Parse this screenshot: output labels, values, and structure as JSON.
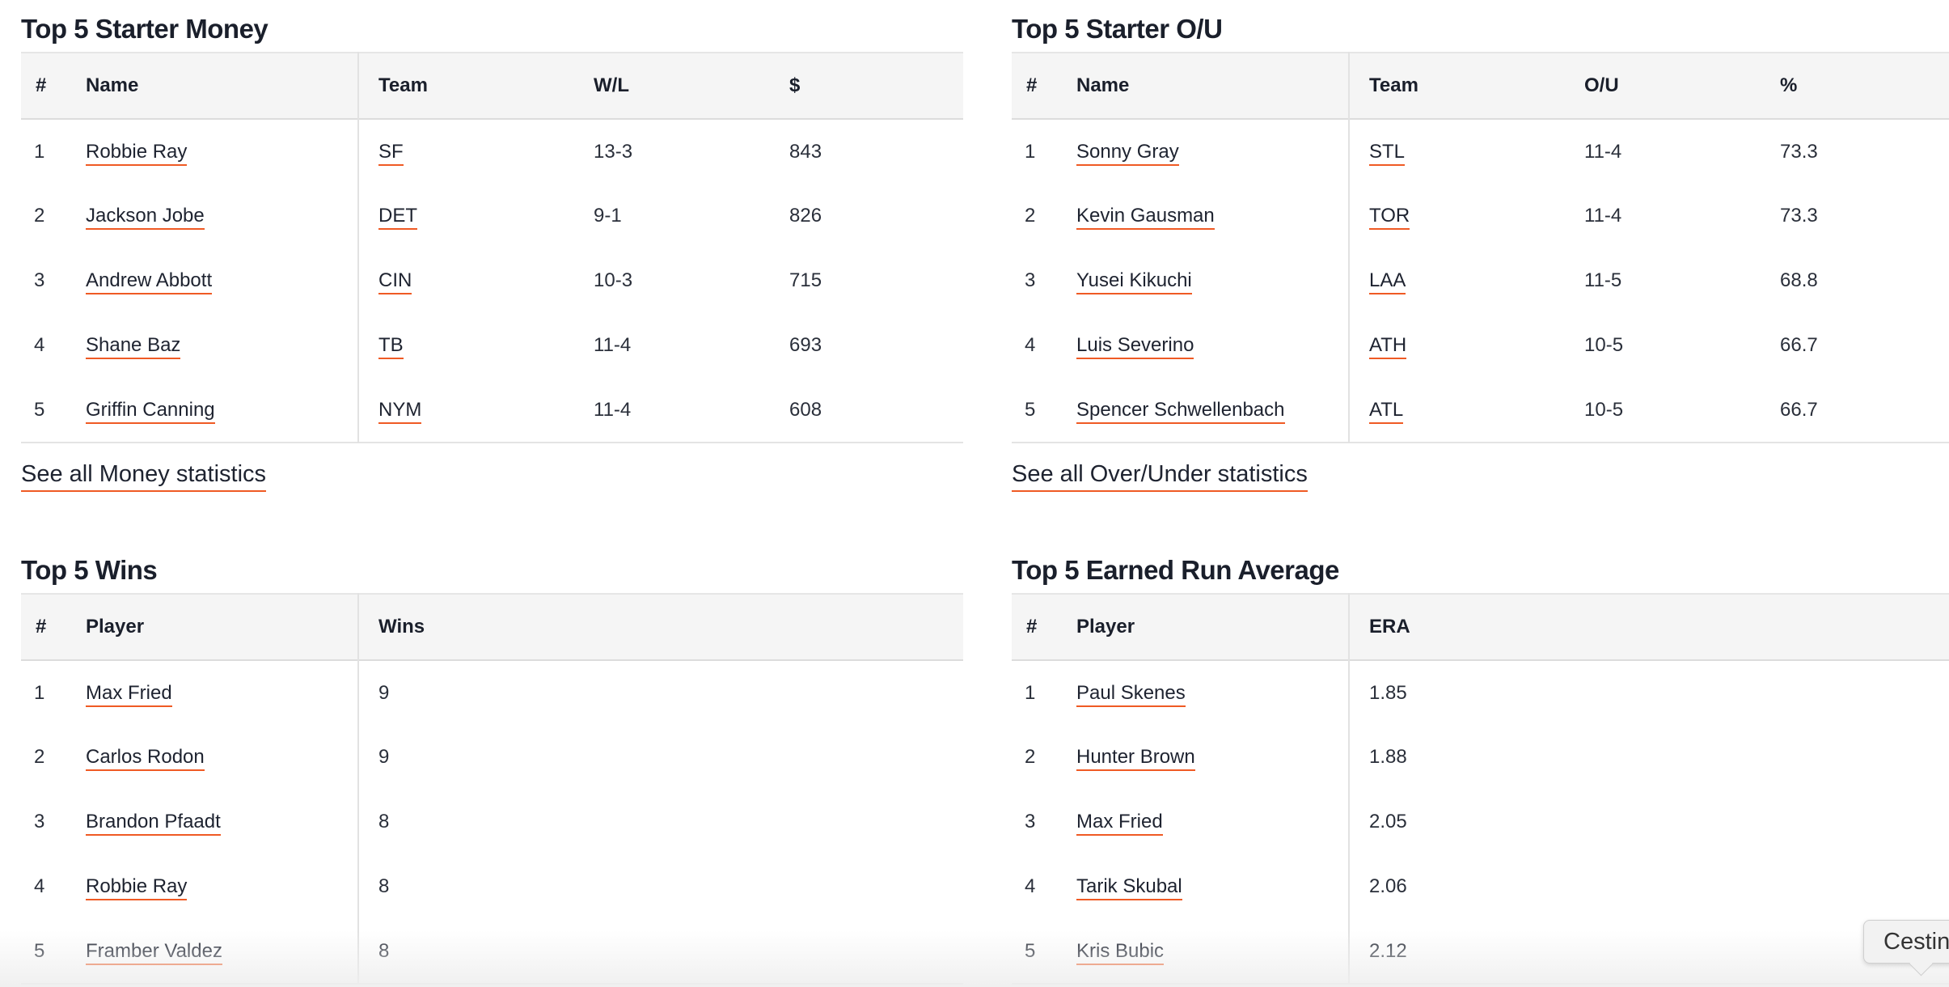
{
  "money": {
    "title": "Top 5 Starter Money",
    "headers": {
      "num": "#",
      "name": "Name",
      "team": "Team",
      "wl": "W/L",
      "money": "$"
    },
    "rows": [
      {
        "num": "1",
        "name": "Robbie Ray",
        "team": "SF",
        "wl": "13-3",
        "money": "843"
      },
      {
        "num": "2",
        "name": "Jackson Jobe",
        "team": "DET",
        "wl": "9-1",
        "money": "826"
      },
      {
        "num": "3",
        "name": "Andrew Abbott",
        "team": "CIN",
        "wl": "10-3",
        "money": "715"
      },
      {
        "num": "4",
        "name": "Shane Baz",
        "team": "TB",
        "wl": "11-4",
        "money": "693"
      },
      {
        "num": "5",
        "name": "Griffin Canning",
        "team": "NYM",
        "wl": "11-4",
        "money": "608"
      }
    ],
    "see_all": "See all Money statistics"
  },
  "ou": {
    "title": "Top 5 Starter O/U",
    "headers": {
      "num": "#",
      "name": "Name",
      "team": "Team",
      "ou": "O/U",
      "pct": "%"
    },
    "rows": [
      {
        "num": "1",
        "name": "Sonny Gray",
        "team": "STL",
        "ou": "11-4",
        "pct": "73.3"
      },
      {
        "num": "2",
        "name": "Kevin Gausman",
        "team": "TOR",
        "ou": "11-4",
        "pct": "73.3"
      },
      {
        "num": "3",
        "name": "Yusei Kikuchi",
        "team": "LAA",
        "ou": "11-5",
        "pct": "68.8"
      },
      {
        "num": "4",
        "name": "Luis Severino",
        "team": "ATH",
        "ou": "10-5",
        "pct": "66.7"
      },
      {
        "num": "5",
        "name": "Spencer Schwellenbach",
        "team": "ATL",
        "ou": "10-5",
        "pct": "66.7"
      }
    ],
    "see_all": "See all Over/Under statistics"
  },
  "wins": {
    "title": "Top 5 Wins",
    "headers": {
      "num": "#",
      "player": "Player",
      "wins": "Wins"
    },
    "rows": [
      {
        "num": "1",
        "player": "Max Fried",
        "wins": "9"
      },
      {
        "num": "2",
        "player": "Carlos Rodon",
        "wins": "9"
      },
      {
        "num": "3",
        "player": "Brandon Pfaadt",
        "wins": "8"
      },
      {
        "num": "4",
        "player": "Robbie Ray",
        "wins": "8"
      },
      {
        "num": "5",
        "player": "Framber Valdez",
        "wins": "8"
      }
    ]
  },
  "era": {
    "title": "Top 5 Earned Run Average",
    "headers": {
      "num": "#",
      "player": "Player",
      "era": "ERA"
    },
    "rows": [
      {
        "num": "1",
        "player": "Paul Skenes",
        "era": "1.85"
      },
      {
        "num": "2",
        "player": "Hunter Brown",
        "era": "1.88"
      },
      {
        "num": "3",
        "player": "Max Fried",
        "era": "2.05"
      },
      {
        "num": "4",
        "player": "Tarik Skubal",
        "era": "2.06"
      },
      {
        "num": "5",
        "player": "Kris Bubic",
        "era": "2.12"
      }
    ]
  },
  "consent_label": "Cestin"
}
